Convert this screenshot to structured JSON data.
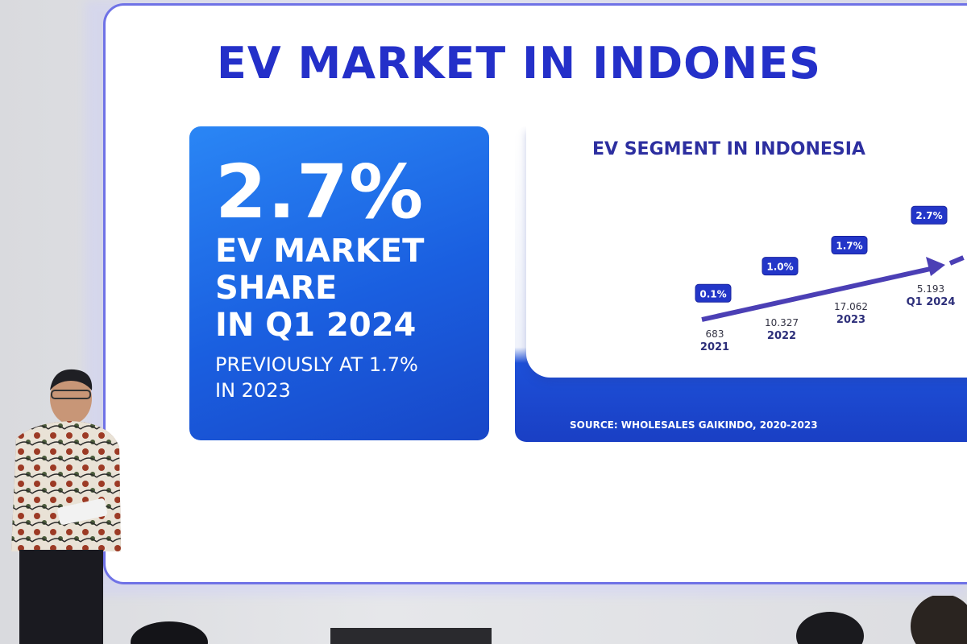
{
  "slide": {
    "title": "EV MARKET IN INDONES"
  },
  "stat_card": {
    "big_value": "2.7%",
    "label_line1": "EV MARKET",
    "label_line2": "SHARE",
    "label_line3": "IN Q1 2024",
    "sub_line1": "PREVIOUSLY AT 1.7%",
    "sub_line2": "IN 2023"
  },
  "chart_panel": {
    "source": "SOURCE: WHOLESALES GAIKINDO, 2020-2023"
  },
  "chart_data": {
    "type": "line",
    "title": "EV SEGMENT IN INDONESIA",
    "categories": [
      "2021",
      "2022",
      "2023",
      "Q1 2024"
    ],
    "unit_values": [
      "683",
      "10.327",
      "17.062",
      "5.193"
    ],
    "share_labels": [
      "0.1%",
      "1.0%",
      "1.7%",
      "2.7%"
    ],
    "series": [
      {
        "values": [
          0.1,
          1.0,
          1.7,
          2.7
        ]
      }
    ],
    "trend": "arrow rising, dashed projection beyond Q1 2024",
    "colors": {
      "line": "#4b3fb5",
      "badge": "#2336c8"
    }
  }
}
